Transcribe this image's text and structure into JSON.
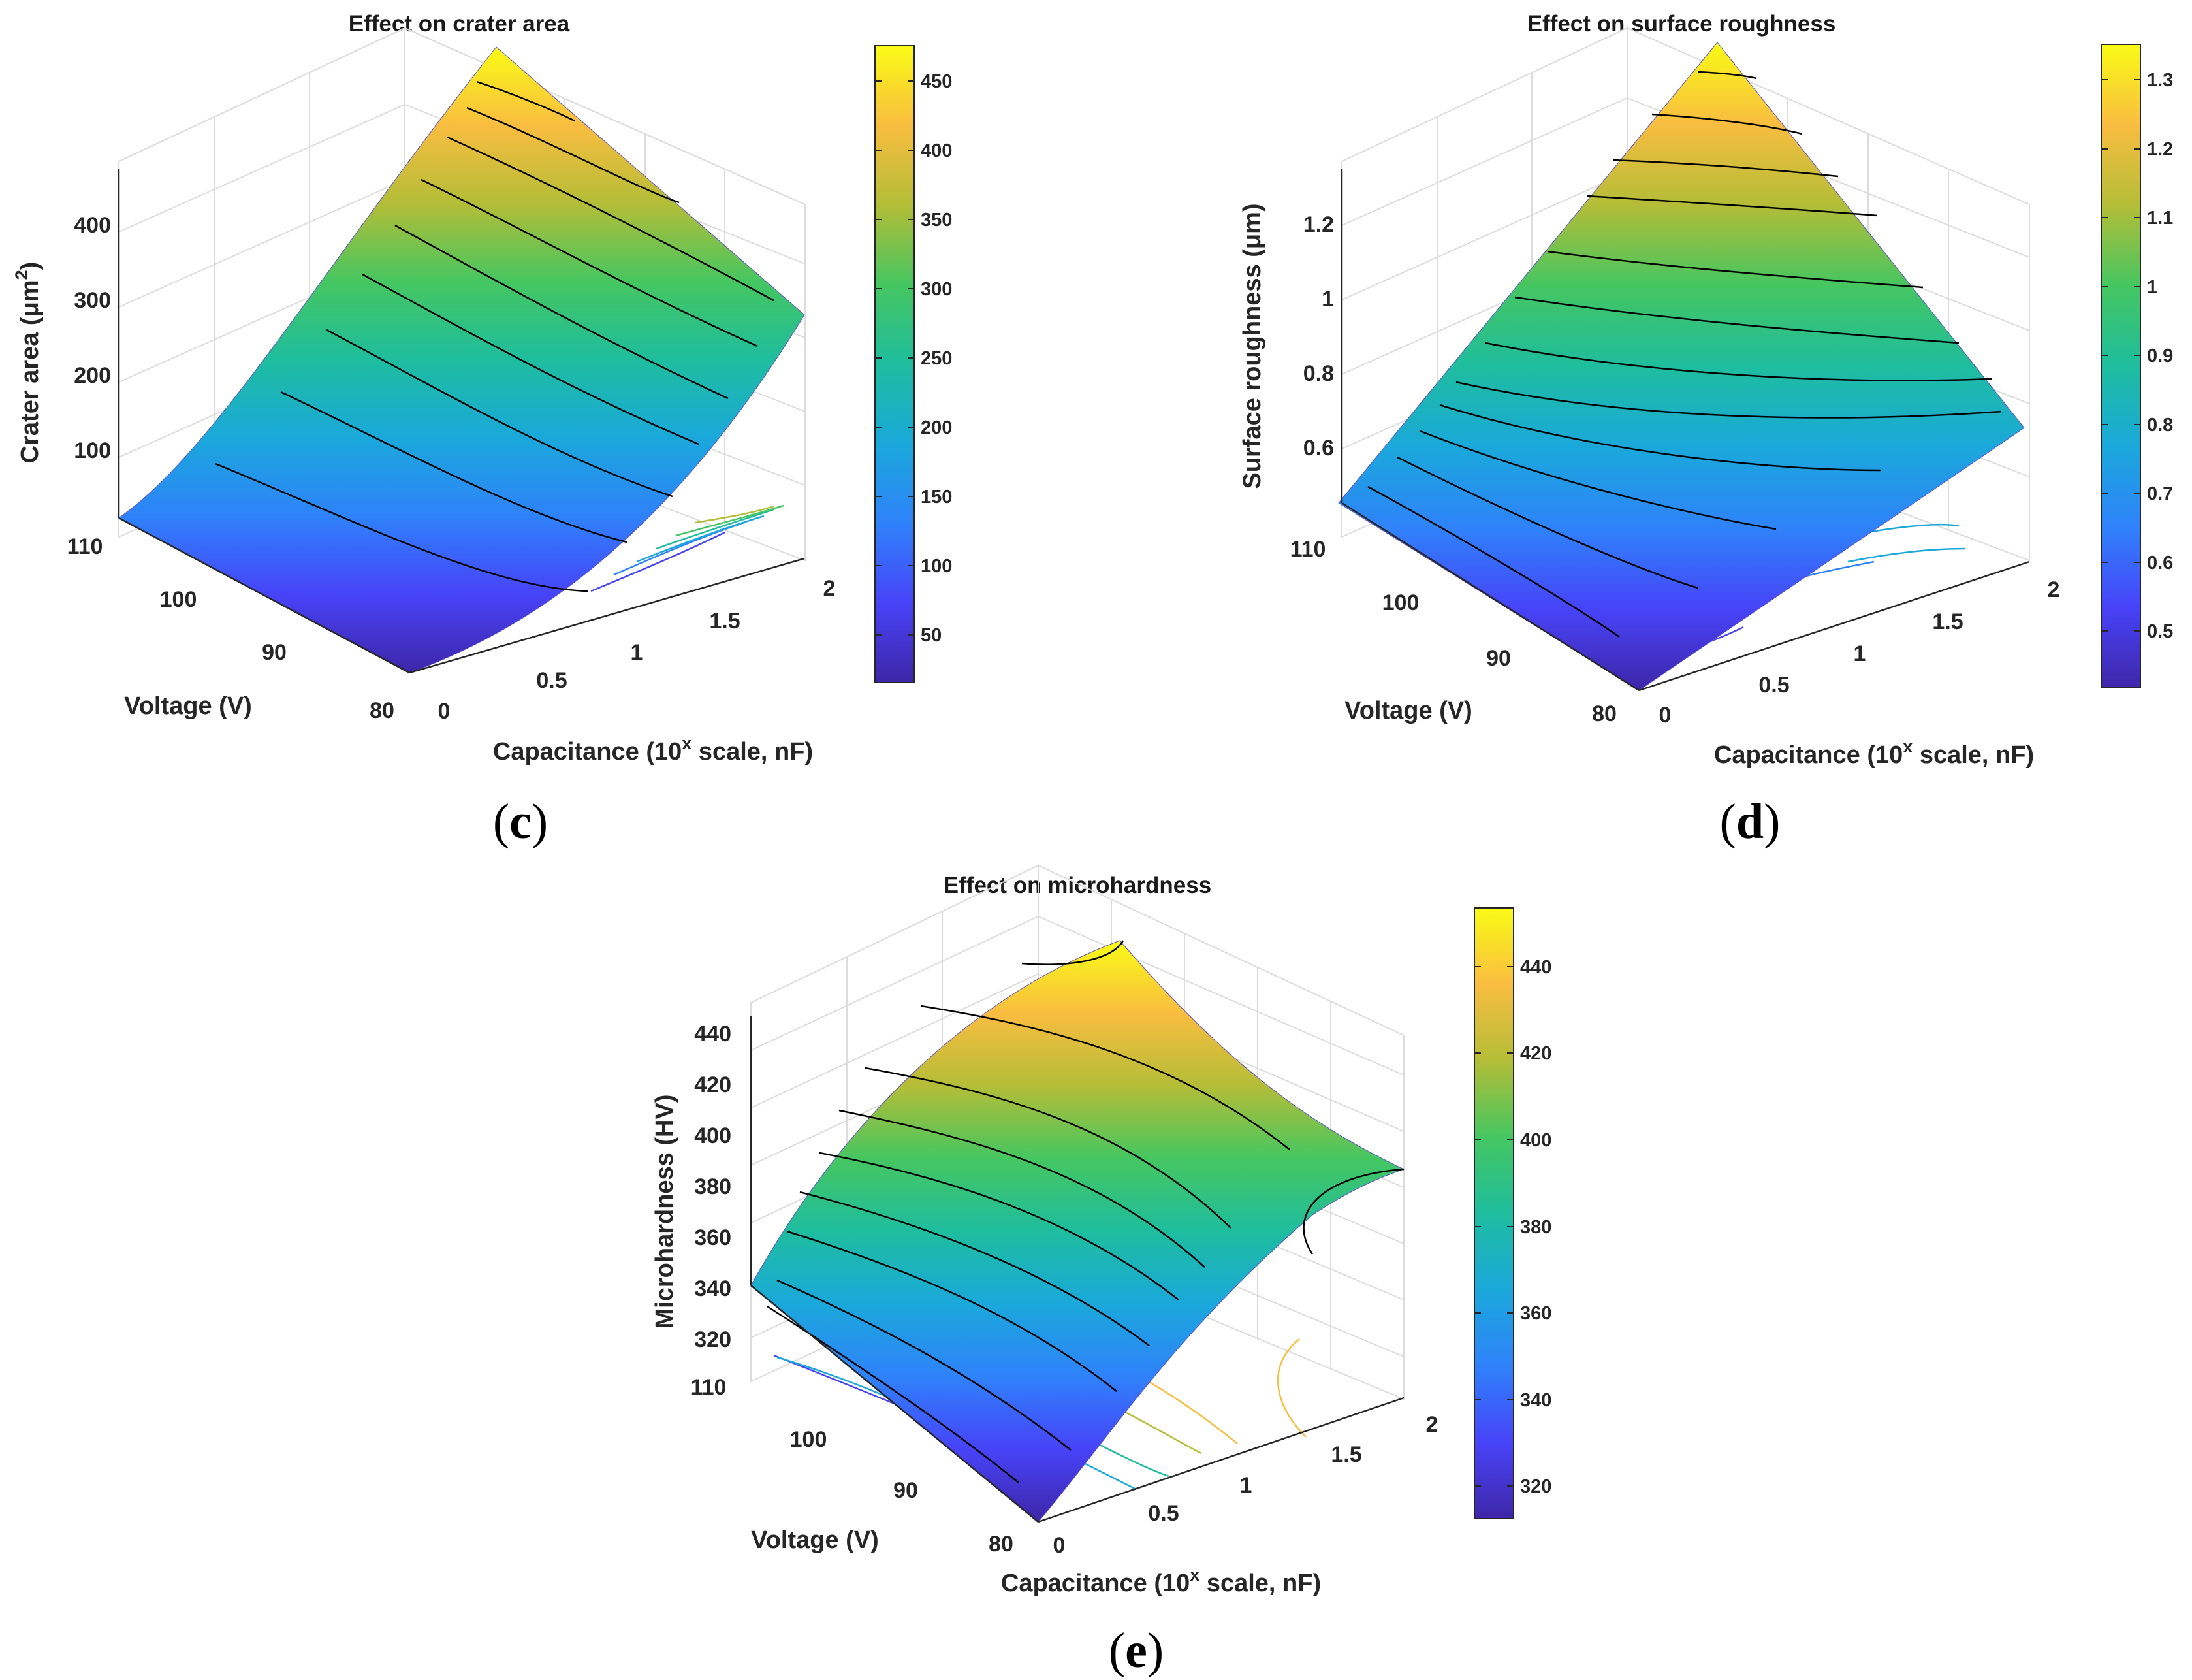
{
  "chart_data": [
    {
      "type": "surface",
      "panel_label": "c",
      "title": "Effect on crater area",
      "xlabel": "Capacitance (10",
      "xlabel_sup": "x",
      "xlabel_tail": " scale, nF)",
      "ylabel": "Voltage (V)",
      "zlabel": "Crater area (μm",
      "zlabel_sup": "2",
      "zlabel_tail": ")",
      "x_ticks": [
        "0",
        "0.5",
        "1",
        "1.5",
        "2"
      ],
      "x_tick_values": [
        0,
        0.5,
        1,
        1.5,
        2
      ],
      "y_ticks": [
        "80",
        "90",
        "100",
        "110"
      ],
      "y_tick_values": [
        80,
        90,
        100,
        110
      ],
      "z_ticks": [
        "100",
        "200",
        "300",
        "400"
      ],
      "z_tick_values": [
        100,
        200,
        300,
        400
      ],
      "xlim": [
        0,
        2
      ],
      "ylim": [
        80,
        110
      ],
      "zlim": [
        0,
        480
      ],
      "colorbar_ticks": [
        "50",
        "100",
        "150",
        "200",
        "250",
        "300",
        "350",
        "400",
        "450"
      ],
      "colorbar_tick_values": [
        50,
        100,
        150,
        200,
        250,
        300,
        350,
        400,
        450
      ],
      "colorbar_range": [
        15,
        475
      ],
      "corner_values": {
        "x0_y80": 15,
        "x0_y110": 45,
        "x2_y80": 275,
        "x2_y110": 475
      },
      "colormap": "parula",
      "contour_projection": true
    },
    {
      "type": "surface",
      "panel_label": "d",
      "title": "Effect on surface roughness",
      "xlabel": "Capacitance (10",
      "xlabel_sup": "x",
      "xlabel_tail": " scale, nF)",
      "ylabel": "Voltage (V)",
      "zlabel": "Surface roughness (μm)",
      "x_ticks": [
        "0",
        "0.5",
        "1",
        "1.5",
        "2"
      ],
      "x_tick_values": [
        0,
        0.5,
        1,
        1.5,
        2
      ],
      "y_ticks": [
        "80",
        "90",
        "100",
        "110"
      ],
      "y_tick_values": [
        80,
        90,
        100,
        110
      ],
      "z_ticks": [
        "0.6",
        "0.8",
        "1",
        "1.2"
      ],
      "z_tick_values": [
        0.6,
        0.8,
        1.0,
        1.2
      ],
      "xlim": [
        0,
        2
      ],
      "ylim": [
        80,
        110
      ],
      "zlim": [
        0.38,
        1.35
      ],
      "colorbar_ticks": [
        "0.5",
        "0.6",
        "0.7",
        "0.8",
        "0.9",
        "1",
        "1.1",
        "1.2",
        "1.3"
      ],
      "colorbar_tick_values": [
        0.5,
        0.6,
        0.7,
        0.8,
        0.9,
        1.0,
        1.1,
        1.2,
        1.3
      ],
      "colorbar_range": [
        0.42,
        1.35
      ],
      "corner_values": {
        "x0_y80": 0.42,
        "x0_y110": 0.55,
        "x2_y80": 0.65,
        "x2_y110": 1.35
      },
      "colormap": "parula",
      "contour_projection": true
    },
    {
      "type": "surface",
      "panel_label": "e",
      "title": "Effect on microhardness",
      "xlabel": "Capacitance (10",
      "xlabel_sup": "x",
      "xlabel_tail": " scale, nF)",
      "ylabel": "Voltage (V)",
      "zlabel": "Microhardness (HV)",
      "x_ticks": [
        "0",
        "0.5",
        "1",
        "1.5",
        "2"
      ],
      "x_tick_values": [
        0,
        0.5,
        1,
        1.5,
        2
      ],
      "y_ticks": [
        "80",
        "90",
        "100",
        "110"
      ],
      "y_tick_values": [
        80,
        90,
        100,
        110
      ],
      "z_ticks": [
        "320",
        "340",
        "360",
        "380",
        "400",
        "420",
        "440"
      ],
      "z_tick_values": [
        320,
        340,
        360,
        380,
        400,
        420,
        440
      ],
      "xlim": [
        0,
        2
      ],
      "ylim": [
        80,
        110
      ],
      "zlim": [
        312,
        453
      ],
      "colorbar_ticks": [
        "320",
        "340",
        "360",
        "380",
        "400",
        "420",
        "440"
      ],
      "colorbar_tick_values": [
        320,
        340,
        360,
        380,
        400,
        420,
        440
      ],
      "colorbar_range": [
        312,
        453
      ],
      "corner_values": {
        "x0_y80": 312,
        "x0_y110": 343,
        "x1_y110": 448,
        "x2_y110": 438,
        "x2_y80": 425
      },
      "colormap": "parula",
      "contour_projection": true
    }
  ]
}
